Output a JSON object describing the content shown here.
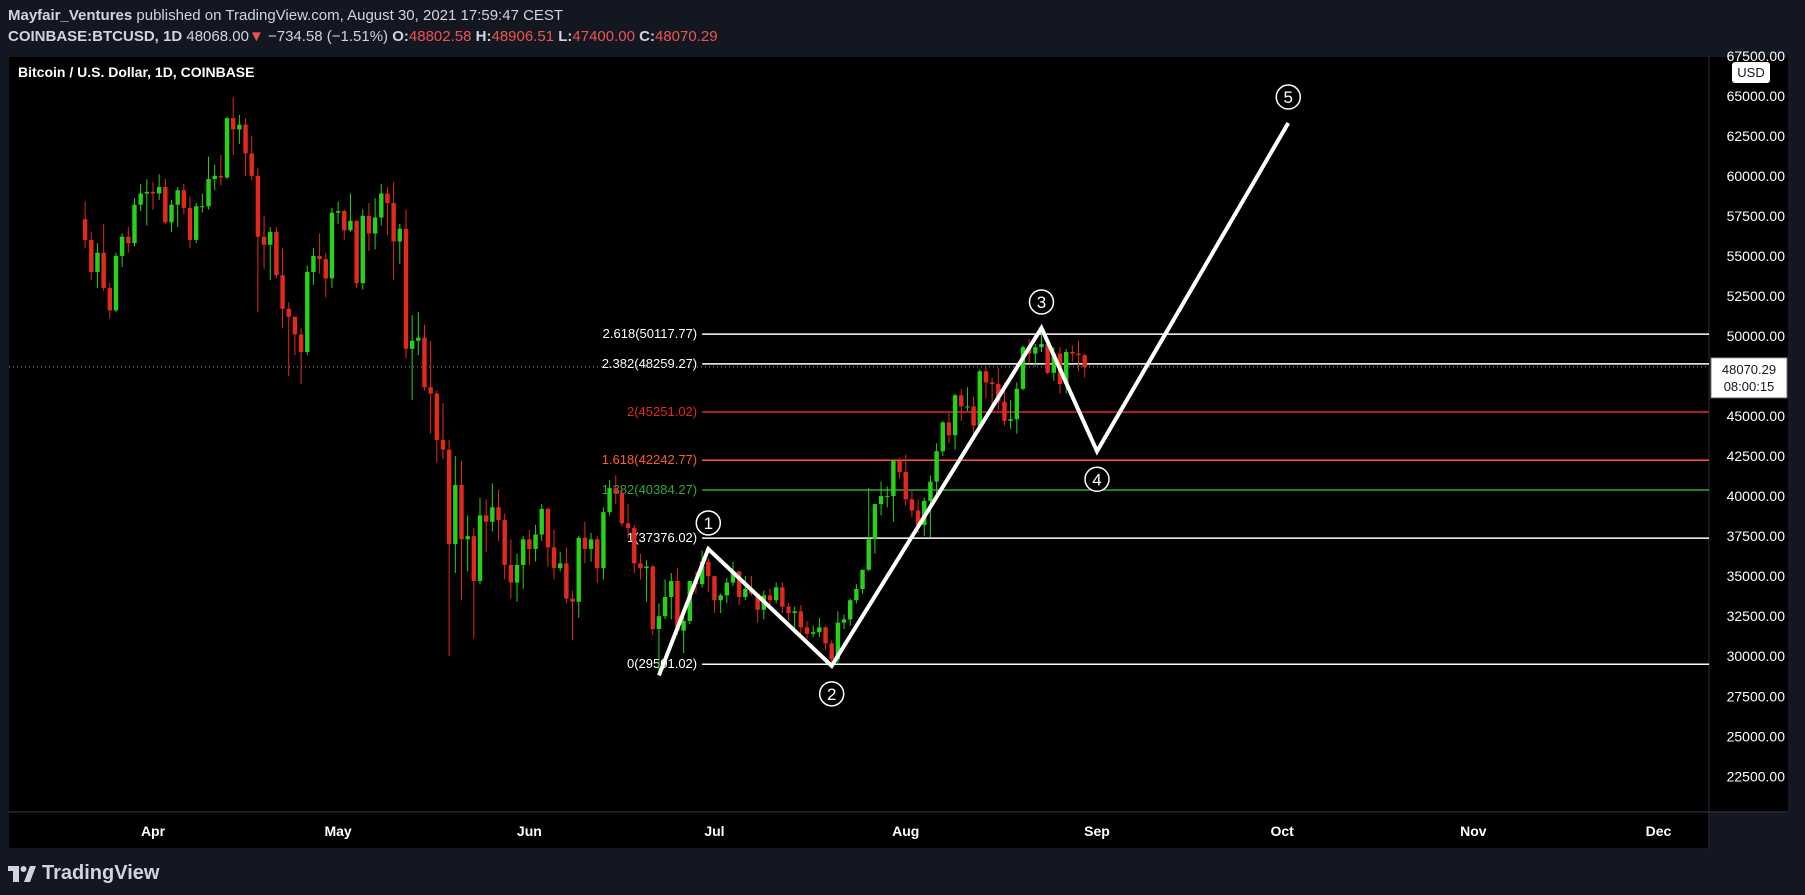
{
  "header": {
    "author": "Mayfair_Ventures",
    "published": "published on TradingView.com, August 30, 2021 17:59:47 CEST",
    "symbol": "COINBASE:BTCUSD, 1D",
    "last": "48068.00",
    "change_arrow": "▼",
    "change": "−734.58 (−1.51%)",
    "o_label": "O:",
    "o": "48802.58",
    "h_label": "H:",
    "h": "48906.51",
    "l_label": "L:",
    "l": "47400.00",
    "c_label": "C:",
    "c": "48070.29"
  },
  "chart_title": "Bitcoin / U.S. Dollar, 1D, COINBASE",
  "currency_badge": "USD",
  "price_tag": {
    "price": "48070.29",
    "countdown": "08:00:15"
  },
  "footer": {
    "brand": "TradingView",
    "logo_icon": "tradingview-logo-icon"
  },
  "colors": {
    "background": "#000000",
    "page": "#131722",
    "up": "#26d11a",
    "down": "#e3281e",
    "fib_white": "#ffffff",
    "fib_red": "#e3281e",
    "fib_orange": "#ff5a2a",
    "fib_green": "#2eaa3c"
  },
  "chart_data": {
    "type": "candlestick",
    "title": "Bitcoin / U.S. Dollar, 1D, COINBASE",
    "y_axis": {
      "ticks": [
        22500,
        25000,
        27500,
        30000,
        32500,
        35000,
        37500,
        40000,
        42500,
        45000,
        47500,
        50000,
        52500,
        55000,
        57500,
        60000,
        62500,
        65000,
        67500
      ]
    },
    "x_axis": {
      "months": [
        "Apr",
        "May",
        "Jun",
        "Jul",
        "Aug",
        "Sep",
        "Oct",
        "Nov",
        "Dec"
      ]
    },
    "current_price": 48070.29,
    "fib_levels": [
      {
        "ratio": "0",
        "price": 29501.02,
        "label": "0(29501.02)",
        "color": "#ffffff"
      },
      {
        "ratio": "1",
        "price": 37376.02,
        "label": "1(37376.02)",
        "color": "#ffffff"
      },
      {
        "ratio": "1.382",
        "price": 40384.27,
        "label": "1.382(40384.27)",
        "color": "#2eaa3c"
      },
      {
        "ratio": "1.618",
        "price": 42242.77,
        "label": "1.618(42242.77)",
        "color": "#ff5a2a"
      },
      {
        "ratio": "2",
        "price": 45251.02,
        "label": "2(45251.02)",
        "color": "#e3281e"
      },
      {
        "ratio": "2.382",
        "price": 48259.27,
        "label": "2.382(48259.27)",
        "color": "#ffffff"
      },
      {
        "ratio": "2.618",
        "price": 50117.77,
        "label": "2.618(50117.77)",
        "color": "#ffffff"
      }
    ],
    "elliott_waves": [
      {
        "date": "2021-06-22",
        "price": 28800,
        "label": ""
      },
      {
        "date": "2021-06-30",
        "price": 36700,
        "label": "1"
      },
      {
        "date": "2021-07-20",
        "price": 29400,
        "label": "2"
      },
      {
        "date": "2021-08-23",
        "price": 50500,
        "label": "3"
      },
      {
        "date": "2021-09-01",
        "price": 42800,
        "label": "4"
      },
      {
        "date": "2021-10-02",
        "price": 63300,
        "label": "5"
      }
    ],
    "candles_ohlc": [
      [
        "2021-03-21",
        57300,
        58400,
        55500,
        56000
      ],
      [
        "2021-03-22",
        56000,
        56500,
        53500,
        54000
      ],
      [
        "2021-03-23",
        54000,
        55800,
        53000,
        55200
      ],
      [
        "2021-03-24",
        55200,
        57000,
        52800,
        53000
      ],
      [
        "2021-03-25",
        53000,
        53300,
        51100,
        51600
      ],
      [
        "2021-03-26",
        51600,
        55200,
        51500,
        55000
      ],
      [
        "2021-03-27",
        55000,
        56400,
        54300,
        56200
      ],
      [
        "2021-03-28",
        56200,
        56800,
        55200,
        55800
      ],
      [
        "2021-03-29",
        55800,
        58600,
        55600,
        58200
      ],
      [
        "2021-03-30",
        58200,
        59500,
        57800,
        58900
      ],
      [
        "2021-03-31",
        58900,
        59800,
        56900,
        59000
      ],
      [
        "2021-04-01",
        59000,
        59600,
        57900,
        58900
      ],
      [
        "2021-04-02",
        58900,
        60100,
        58500,
        59300
      ],
      [
        "2021-04-03",
        59300,
        59800,
        57000,
        57100
      ],
      [
        "2021-04-04",
        57100,
        58500,
        56500,
        58200
      ],
      [
        "2021-04-05",
        58200,
        59300,
        56800,
        59100
      ],
      [
        "2021-04-06",
        59100,
        59500,
        57600,
        58000
      ],
      [
        "2021-04-07",
        58000,
        58700,
        55500,
        56000
      ],
      [
        "2021-04-08",
        56000,
        58300,
        55800,
        58100
      ],
      [
        "2021-04-09",
        58100,
        58900,
        57700,
        58100
      ],
      [
        "2021-04-10",
        58100,
        61200,
        57900,
        59800
      ],
      [
        "2021-04-11",
        59800,
        60700,
        59100,
        60000
      ],
      [
        "2021-04-12",
        60000,
        61300,
        59400,
        59900
      ],
      [
        "2021-04-13",
        59900,
        63700,
        59800,
        63600
      ],
      [
        "2021-04-14",
        63600,
        64900,
        61300,
        62900
      ],
      [
        "2021-04-15",
        62900,
        63800,
        62000,
        63200
      ],
      [
        "2021-04-16",
        63200,
        63600,
        60000,
        61400
      ],
      [
        "2021-04-17",
        61400,
        62500,
        59700,
        60000
      ],
      [
        "2021-04-18",
        60000,
        60500,
        51500,
        56200
      ],
      [
        "2021-04-19",
        56200,
        57500,
        54200,
        55700
      ],
      [
        "2021-04-20",
        55700,
        56800,
        53500,
        56500
      ],
      [
        "2021-04-21",
        56500,
        56800,
        53600,
        53800
      ],
      [
        "2021-04-22",
        53800,
        55500,
        50500,
        51700
      ],
      [
        "2021-04-23",
        51700,
        52100,
        47500,
        51200
      ],
      [
        "2021-04-24",
        51200,
        51200,
        48800,
        50100
      ],
      [
        "2021-04-25",
        50100,
        50500,
        47000,
        49000
      ],
      [
        "2021-04-26",
        49000,
        54400,
        48800,
        54000
      ],
      [
        "2021-04-27",
        54000,
        55500,
        53200,
        55000
      ],
      [
        "2021-04-28",
        55000,
        56400,
        53900,
        54800
      ],
      [
        "2021-04-29",
        54800,
        55200,
        52400,
        53600
      ],
      [
        "2021-04-30",
        53600,
        58000,
        53000,
        57700
      ],
      [
        "2021-05-01",
        57700,
        58400,
        57000,
        57800
      ],
      [
        "2021-05-02",
        57800,
        57900,
        56000,
        56600
      ],
      [
        "2021-05-03",
        56600,
        58900,
        56500,
        57200
      ],
      [
        "2021-05-04",
        57200,
        57200,
        53000,
        53300
      ],
      [
        "2021-05-05",
        53300,
        57900,
        52900,
        57500
      ],
      [
        "2021-05-06",
        57500,
        58300,
        55300,
        56400
      ],
      [
        "2021-05-07",
        56400,
        58600,
        55400,
        57400
      ],
      [
        "2021-05-08",
        57400,
        59500,
        56900,
        58900
      ],
      [
        "2021-05-09",
        58900,
        59300,
        56300,
        58300
      ],
      [
        "2021-05-10",
        58300,
        59600,
        53500,
        55900
      ],
      [
        "2021-05-11",
        55900,
        57000,
        54500,
        56700
      ],
      [
        "2021-05-12",
        56700,
        57900,
        48600,
        49200
      ],
      [
        "2021-05-13",
        49200,
        51300,
        46000,
        49700
      ],
      [
        "2021-05-14",
        49700,
        51500,
        48800,
        49900
      ],
      [
        "2021-05-15",
        49900,
        50700,
        46600,
        46800
      ],
      [
        "2021-05-16",
        46800,
        49700,
        43900,
        46400
      ],
      [
        "2021-05-17",
        46400,
        46600,
        42100,
        43500
      ],
      [
        "2021-05-18",
        43500,
        45800,
        42300,
        42900
      ],
      [
        "2021-05-19",
        42900,
        43500,
        30000,
        37000
      ],
      [
        "2021-05-20",
        37000,
        42500,
        35200,
        40700
      ],
      [
        "2021-05-21",
        40700,
        42200,
        33500,
        37300
      ],
      [
        "2021-05-22",
        37300,
        38800,
        35300,
        37500
      ],
      [
        "2021-05-23",
        37500,
        38000,
        31100,
        34700
      ],
      [
        "2021-05-24",
        34700,
        39900,
        34500,
        38800
      ],
      [
        "2021-05-25",
        38800,
        39800,
        36500,
        38400
      ],
      [
        "2021-05-26",
        38400,
        40800,
        37800,
        39300
      ],
      [
        "2021-05-27",
        39300,
        40400,
        37200,
        38500
      ],
      [
        "2021-05-28",
        38500,
        38900,
        34800,
        35700
      ],
      [
        "2021-05-29",
        35700,
        37300,
        33600,
        34600
      ],
      [
        "2021-05-30",
        34600,
        36400,
        33400,
        35700
      ],
      [
        "2021-05-31",
        35700,
        37500,
        34200,
        37300
      ],
      [
        "2021-06-01",
        37300,
        37900,
        35700,
        36700
      ],
      [
        "2021-06-02",
        36700,
        38200,
        35900,
        37600
      ],
      [
        "2021-06-03",
        37600,
        39500,
        37200,
        39200
      ],
      [
        "2021-06-04",
        39200,
        39300,
        35600,
        36800
      ],
      [
        "2021-06-05",
        36800,
        37900,
        34800,
        35500
      ],
      [
        "2021-06-06",
        35500,
        36500,
        35300,
        35800
      ],
      [
        "2021-06-07",
        35800,
        36800,
        33300,
        33600
      ],
      [
        "2021-06-08",
        33600,
        34100,
        31000,
        33400
      ],
      [
        "2021-06-09",
        33400,
        37500,
        32400,
        37400
      ],
      [
        "2021-06-10",
        37400,
        38400,
        35800,
        36700
      ],
      [
        "2021-06-11",
        36700,
        37700,
        35900,
        37300
      ],
      [
        "2021-06-12",
        37300,
        37500,
        34600,
        35500
      ],
      [
        "2021-06-13",
        35500,
        39300,
        34800,
        39000
      ],
      [
        "2021-06-14",
        39000,
        41000,
        38800,
        40500
      ],
      [
        "2021-06-15",
        40500,
        41300,
        39500,
        40200
      ],
      [
        "2021-06-16",
        40200,
        40500,
        38100,
        38300
      ],
      [
        "2021-06-17",
        38300,
        39500,
        37400,
        38000
      ],
      [
        "2021-06-18",
        38000,
        38200,
        35200,
        35800
      ],
      [
        "2021-06-19",
        35800,
        36400,
        34800,
        35500
      ],
      [
        "2021-06-20",
        35500,
        36000,
        33400,
        35600
      ],
      [
        "2021-06-21",
        35600,
        35700,
        31300,
        31700
      ],
      [
        "2021-06-22",
        31700,
        33300,
        28800,
        32500
      ],
      [
        "2021-06-23",
        32500,
        34800,
        32300,
        33700
      ],
      [
        "2021-06-24",
        33700,
        35200,
        32300,
        34700
      ],
      [
        "2021-06-25",
        34700,
        35500,
        31300,
        31600
      ],
      [
        "2021-06-26",
        31600,
        32700,
        30200,
        32200
      ],
      [
        "2021-06-27",
        32200,
        34700,
        32000,
        34700
      ],
      [
        "2021-06-28",
        34700,
        35300,
        33900,
        34500
      ],
      [
        "2021-06-29",
        34500,
        36600,
        34300,
        35900
      ],
      [
        "2021-06-30",
        35900,
        36100,
        34000,
        35000
      ],
      [
        "2021-07-01",
        35000,
        35000,
        32700,
        33500
      ],
      [
        "2021-07-02",
        33500,
        33900,
        32700,
        33800
      ],
      [
        "2021-07-03",
        33800,
        34900,
        33300,
        34600
      ],
      [
        "2021-07-04",
        34600,
        35900,
        34400,
        35300
      ],
      [
        "2021-07-05",
        35300,
        35300,
        33200,
        33700
      ],
      [
        "2021-07-06",
        33700,
        35000,
        33500,
        34200
      ],
      [
        "2021-07-07",
        34200,
        35000,
        33800,
        33900
      ],
      [
        "2021-07-08",
        33900,
        33900,
        32100,
        32900
      ],
      [
        "2021-07-09",
        32900,
        34100,
        32300,
        33800
      ],
      [
        "2021-07-10",
        33800,
        34200,
        33000,
        33500
      ],
      [
        "2021-07-11",
        33500,
        34600,
        33300,
        34300
      ],
      [
        "2021-07-12",
        34300,
        34600,
        32700,
        33100
      ],
      [
        "2021-07-13",
        33100,
        33300,
        32200,
        32700
      ],
      [
        "2021-07-14",
        32700,
        33100,
        31600,
        32800
      ],
      [
        "2021-07-15",
        32800,
        33200,
        31200,
        31800
      ],
      [
        "2021-07-16",
        31800,
        32200,
        31100,
        31400
      ],
      [
        "2021-07-17",
        31400,
        31900,
        31200,
        31500
      ],
      [
        "2021-07-18",
        31500,
        32400,
        31200,
        31800
      ],
      [
        "2021-07-19",
        31800,
        31900,
        30400,
        30800
      ],
      [
        "2021-07-20",
        30800,
        31000,
        29300,
        29800
      ],
      [
        "2021-07-21",
        29800,
        32800,
        29500,
        32100
      ],
      [
        "2021-07-22",
        32100,
        32600,
        31700,
        32300
      ],
      [
        "2021-07-23",
        32300,
        33600,
        31900,
        33500
      ],
      [
        "2021-07-24",
        33500,
        34500,
        33300,
        34200
      ],
      [
        "2021-07-25",
        34200,
        35400,
        33900,
        35400
      ],
      [
        "2021-07-26",
        35400,
        40500,
        35300,
        37300
      ],
      [
        "2021-07-27",
        37300,
        39500,
        36400,
        39500
      ],
      [
        "2021-07-28",
        39500,
        40900,
        38800,
        40000
      ],
      [
        "2021-07-29",
        40000,
        40600,
        39300,
        40000
      ],
      [
        "2021-07-30",
        40000,
        42300,
        38400,
        42200
      ],
      [
        "2021-07-31",
        42200,
        42400,
        41100,
        41500
      ],
      [
        "2021-08-01",
        41500,
        42600,
        39400,
        39800
      ],
      [
        "2021-08-02",
        39800,
        40400,
        38700,
        39100
      ],
      [
        "2021-08-03",
        39100,
        39800,
        37700,
        38200
      ],
      [
        "2021-08-04",
        38200,
        39900,
        37500,
        39700
      ],
      [
        "2021-08-05",
        39700,
        41300,
        37400,
        40900
      ],
      [
        "2021-08-06",
        40900,
        43300,
        39900,
        42800
      ],
      [
        "2021-08-07",
        42800,
        44700,
        42500,
        44600
      ],
      [
        "2021-08-08",
        44600,
        45200,
        43300,
        43800
      ],
      [
        "2021-08-09",
        43800,
        46400,
        42900,
        46300
      ],
      [
        "2021-08-10",
        46300,
        46700,
        44700,
        45600
      ],
      [
        "2021-08-11",
        45600,
        46800,
        45300,
        45600
      ],
      [
        "2021-08-12",
        45600,
        46200,
        43800,
        44400
      ],
      [
        "2021-08-13",
        44400,
        47900,
        44200,
        47800
      ],
      [
        "2021-08-14",
        47800,
        48100,
        46100,
        47100
      ],
      [
        "2021-08-15",
        47100,
        47400,
        45600,
        47000
      ],
      [
        "2021-08-16",
        47000,
        48000,
        45400,
        45900
      ],
      [
        "2021-08-17",
        45900,
        47100,
        44400,
        44700
      ],
      [
        "2021-08-18",
        44700,
        46000,
        44200,
        44800
      ],
      [
        "2021-08-19",
        44800,
        47100,
        43900,
        46700
      ],
      [
        "2021-08-20",
        46700,
        49400,
        46600,
        49300
      ],
      [
        "2021-08-21",
        49300,
        49800,
        48300,
        48900
      ],
      [
        "2021-08-22",
        48900,
        49500,
        48100,
        49300
      ],
      [
        "2021-08-23",
        49300,
        50500,
        49000,
        49500
      ],
      [
        "2021-08-24",
        49500,
        49800,
        47600,
        47700
      ],
      [
        "2021-08-25",
        47700,
        49300,
        47200,
        48900
      ],
      [
        "2021-08-26",
        48900,
        49300,
        46400,
        47000
      ],
      [
        "2021-08-27",
        47000,
        49200,
        46400,
        49000
      ],
      [
        "2021-08-28",
        49000,
        49400,
        48400,
        48900
      ],
      [
        "2021-08-29",
        48900,
        49700,
        47800,
        48800
      ],
      [
        "2021-08-30",
        48800,
        48900,
        47400,
        48070
      ]
    ]
  }
}
